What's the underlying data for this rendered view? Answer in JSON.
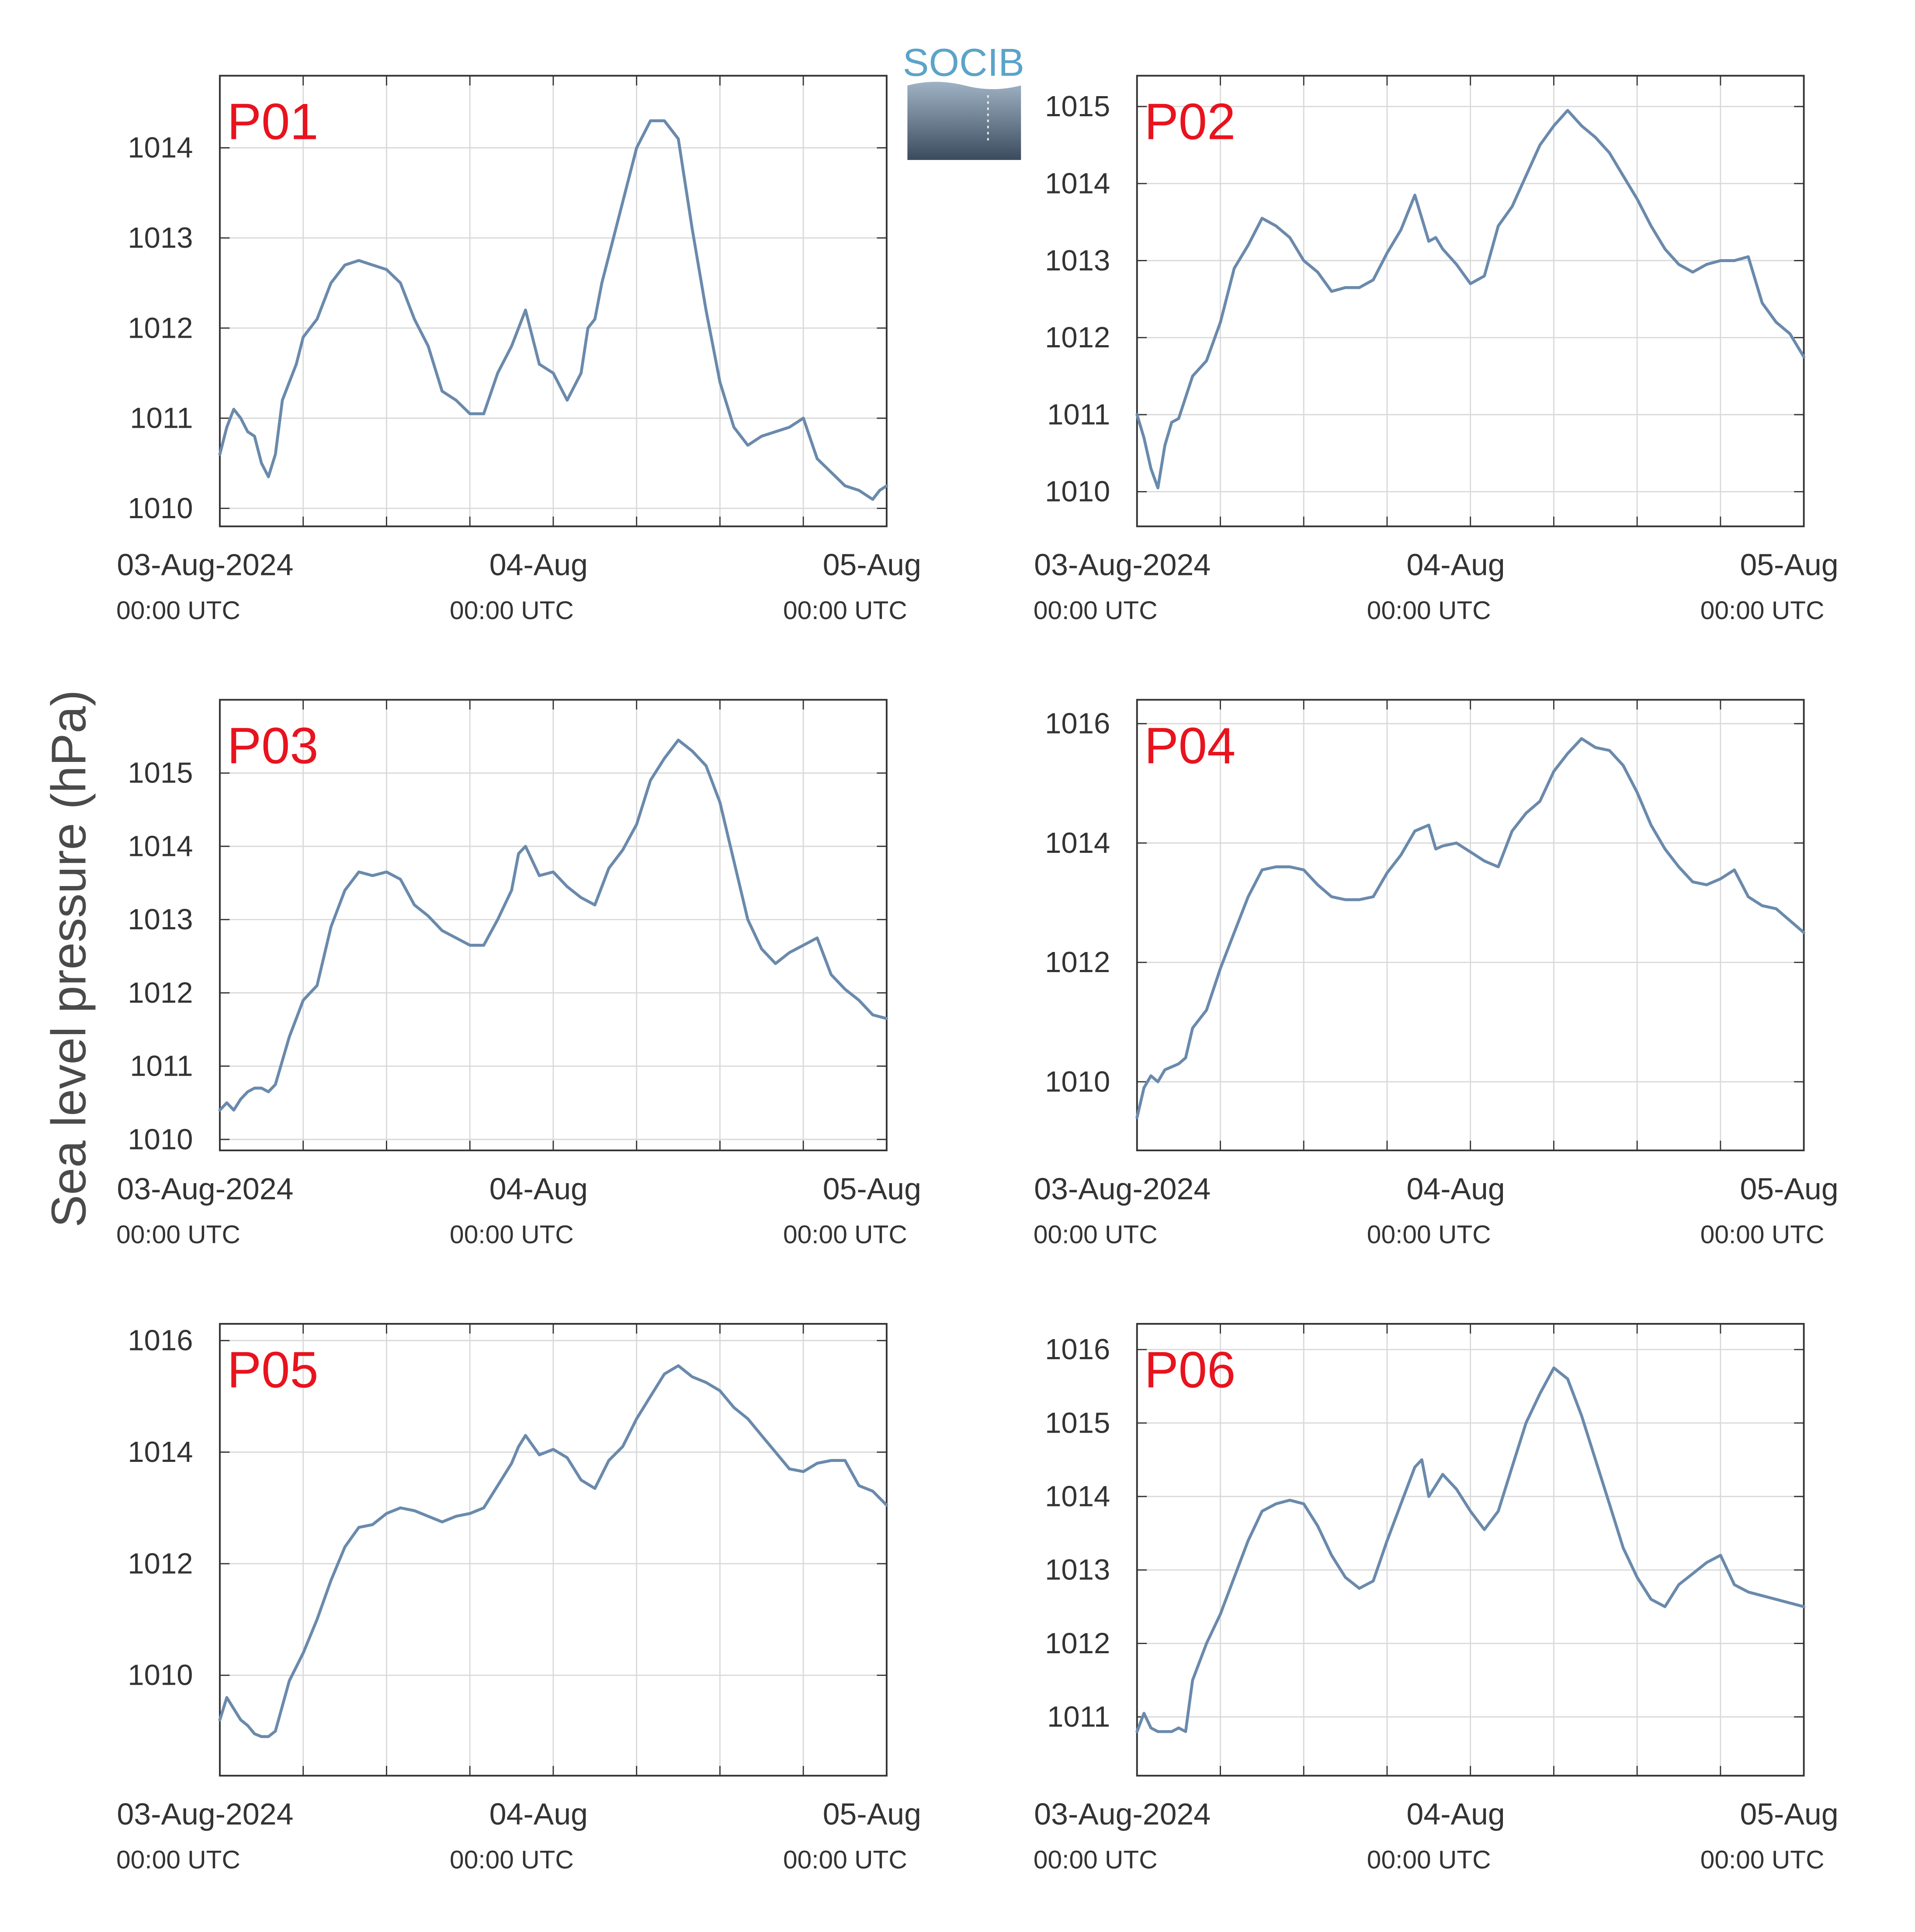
{
  "figure": {
    "ylabel": "Sea level pressure (hPa)",
    "logo": {
      "text": "SOCIB",
      "text_color": "#5ba3c9",
      "top_color": "#9fb3c4",
      "bottom_color": "#3b4b5e"
    },
    "colors": {
      "line": "#6a8aac",
      "title": "#e8131e",
      "grid": "#d9d9d9",
      "axis": "#333333"
    },
    "x_ticks": [
      {
        "date": "03-Aug-2024",
        "time": "00:00 UTC"
      },
      {
        "date": "04-Aug",
        "time": "00:00 UTC"
      },
      {
        "date": "05-Aug",
        "time": "00:00 UTC"
      }
    ]
  },
  "chart_data": [
    {
      "type": "line",
      "title": "P01",
      "xlim": [
        "2024-08-03 00:00",
        "2024-08-05 00:00"
      ],
      "ylim": [
        1009.8,
        1014.8
      ],
      "yticks": [
        1010,
        1011,
        1012,
        1013,
        1014
      ],
      "x_hours": [
        0,
        0.5,
        1,
        1.5,
        2,
        2.5,
        3,
        3.5,
        4,
        4.5,
        5,
        5.5,
        6,
        7,
        8,
        9,
        10,
        11,
        12,
        13,
        14,
        15,
        16,
        17,
        18,
        19,
        20,
        21,
        22,
        23,
        24,
        25,
        26,
        26.5,
        27,
        27.5,
        28,
        29,
        30,
        31,
        32,
        33,
        34,
        35,
        36,
        37,
        38,
        39,
        40,
        41,
        42,
        43,
        44,
        45,
        46,
        46.5,
        47,
        47.5,
        48
      ],
      "values": [
        1010.6,
        1010.9,
        1011.1,
        1011.0,
        1010.85,
        1010.8,
        1010.5,
        1010.35,
        1010.6,
        1011.2,
        1011.4,
        1011.6,
        1011.9,
        1012.1,
        1012.5,
        1012.7,
        1012.75,
        1012.7,
        1012.65,
        1012.5,
        1012.1,
        1011.8,
        1011.3,
        1011.2,
        1011.05,
        1011.05,
        1011.5,
        1011.8,
        1012.2,
        1011.6,
        1011.5,
        1011.2,
        1011.5,
        1012.0,
        1012.1,
        1012.5,
        1012.8,
        1013.4,
        1014.0,
        1014.3,
        1014.3,
        1014.1,
        1013.1,
        1012.2,
        1011.4,
        1010.9,
        1010.7,
        1010.8,
        1010.85,
        1010.9,
        1011.0,
        1010.55,
        1010.4,
        1010.25,
        1010.2,
        1010.15,
        1010.1,
        1010.2,
        1010.25
      ],
      "series": [
        {
          "name": ""
        }
      ]
    },
    {
      "type": "line",
      "title": "P02",
      "xlim": [
        "2024-08-03 00:00",
        "2024-08-05 00:00"
      ],
      "ylim": [
        1009.55,
        1015.4
      ],
      "yticks": [
        1010,
        1011,
        1012,
        1013,
        1014,
        1015
      ],
      "x_hours": [
        0,
        0.5,
        1,
        1.5,
        2,
        2.5,
        3,
        4,
        5,
        6,
        7,
        8,
        9,
        10,
        11,
        12,
        13,
        14,
        15,
        16,
        17,
        18,
        19,
        20,
        21,
        21.5,
        22,
        23,
        24,
        25,
        26,
        27,
        28,
        29,
        30,
        31,
        32,
        33,
        34,
        35,
        36,
        37,
        38,
        39,
        40,
        41,
        42,
        43,
        44,
        45,
        46,
        47,
        48
      ],
      "values": [
        1011.0,
        1010.7,
        1010.3,
        1010.05,
        1010.6,
        1010.9,
        1010.95,
        1011.5,
        1011.7,
        1012.2,
        1012.9,
        1013.2,
        1013.55,
        1013.45,
        1013.3,
        1013.0,
        1012.85,
        1012.6,
        1012.65,
        1012.65,
        1012.75,
        1013.1,
        1013.4,
        1013.85,
        1013.25,
        1013.3,
        1013.15,
        1012.95,
        1012.7,
        1012.8,
        1013.45,
        1013.7,
        1014.1,
        1014.5,
        1014.75,
        1014.95,
        1014.75,
        1014.6,
        1014.4,
        1014.1,
        1013.8,
        1013.45,
        1013.15,
        1012.95,
        1012.85,
        1012.95,
        1013.0,
        1013.0,
        1013.05,
        1012.45,
        1012.2,
        1012.05,
        1011.75
      ],
      "series": [
        {
          "name": ""
        }
      ]
    },
    {
      "type": "line",
      "title": "P03",
      "xlim": [
        "2024-08-03 00:00",
        "2024-08-05 00:00"
      ],
      "ylim": [
        1009.85,
        1016.0
      ],
      "yticks": [
        1010,
        1011,
        1012,
        1013,
        1014,
        1015
      ],
      "x_hours": [
        0,
        0.5,
        1,
        1.5,
        2,
        2.5,
        3,
        3.5,
        4,
        5,
        6,
        7,
        8,
        9,
        10,
        11,
        12,
        13,
        14,
        15,
        16,
        17,
        18,
        19,
        20,
        21,
        21.5,
        22,
        23,
        24,
        25,
        26,
        27,
        28,
        29,
        30,
        31,
        32,
        33,
        34,
        35,
        36,
        37,
        38,
        39,
        40,
        41,
        42,
        43,
        44,
        45,
        46,
        47,
        48
      ],
      "values": [
        1010.4,
        1010.5,
        1010.4,
        1010.55,
        1010.65,
        1010.7,
        1010.7,
        1010.65,
        1010.75,
        1011.4,
        1011.9,
        1012.1,
        1012.9,
        1013.4,
        1013.65,
        1013.6,
        1013.65,
        1013.55,
        1013.2,
        1013.05,
        1012.85,
        1012.75,
        1012.65,
        1012.65,
        1013.0,
        1013.4,
        1013.9,
        1014.0,
        1013.6,
        1013.65,
        1013.45,
        1013.3,
        1013.2,
        1013.7,
        1013.95,
        1014.3,
        1014.9,
        1015.2,
        1015.45,
        1015.3,
        1015.1,
        1014.6,
        1013.8,
        1013.0,
        1012.6,
        1012.4,
        1012.55,
        1012.65,
        1012.75,
        1012.25,
        1012.05,
        1011.9,
        1011.7,
        1011.65
      ],
      "series": [
        {
          "name": ""
        }
      ]
    },
    {
      "type": "line",
      "title": "P04",
      "xlim": [
        "2024-08-03 00:00",
        "2024-08-05 00:00"
      ],
      "ylim": [
        1008.85,
        1016.4
      ],
      "yticks": [
        1010,
        1012,
        1014,
        1016
      ],
      "x_hours": [
        0,
        0.5,
        1,
        1.5,
        2,
        2.5,
        3,
        3.5,
        4,
        5,
        6,
        7,
        8,
        9,
        10,
        11,
        12,
        13,
        14,
        15,
        16,
        17,
        18,
        19,
        20,
        21,
        21.5,
        22,
        23,
        24,
        25,
        26,
        27,
        28,
        29,
        30,
        31,
        32,
        33,
        34,
        35,
        36,
        37,
        38,
        39,
        40,
        41,
        42,
        43,
        44,
        45,
        46,
        47,
        48
      ],
      "values": [
        1009.4,
        1009.9,
        1010.1,
        1010.0,
        1010.2,
        1010.25,
        1010.3,
        1010.4,
        1010.9,
        1011.2,
        1011.9,
        1012.5,
        1013.1,
        1013.55,
        1013.6,
        1013.6,
        1013.55,
        1013.3,
        1013.1,
        1013.05,
        1013.05,
        1013.1,
        1013.5,
        1013.8,
        1014.2,
        1014.3,
        1013.9,
        1013.95,
        1014.0,
        1013.85,
        1013.7,
        1013.6,
        1014.2,
        1014.5,
        1014.7,
        1015.2,
        1015.5,
        1015.75,
        1015.6,
        1015.55,
        1015.3,
        1014.85,
        1014.3,
        1013.9,
        1013.6,
        1013.35,
        1013.3,
        1013.4,
        1013.55,
        1013.1,
        1012.95,
        1012.9,
        1012.7,
        1012.5
      ],
      "series": [
        {
          "name": ""
        }
      ]
    },
    {
      "type": "line",
      "title": "P05",
      "xlim": [
        "2024-08-03 00:00",
        "2024-08-05 00:00"
      ],
      "ylim": [
        1008.2,
        1016.3
      ],
      "yticks": [
        1010,
        1012,
        1014,
        1016
      ],
      "x_hours": [
        0,
        0.5,
        1,
        1.5,
        2,
        2.5,
        3,
        3.5,
        4,
        5,
        6,
        7,
        8,
        9,
        10,
        11,
        12,
        13,
        14,
        15,
        16,
        17,
        18,
        19,
        20,
        21,
        21.5,
        22,
        23,
        24,
        25,
        26,
        27,
        28,
        29,
        30,
        31,
        32,
        33,
        34,
        35,
        36,
        37,
        38,
        39,
        40,
        41,
        42,
        43,
        44,
        45,
        46,
        47,
        48
      ],
      "values": [
        1009.2,
        1009.6,
        1009.4,
        1009.2,
        1009.1,
        1008.95,
        1008.9,
        1008.9,
        1009.0,
        1009.9,
        1010.4,
        1011.0,
        1011.7,
        1012.3,
        1012.65,
        1012.7,
        1012.9,
        1013.0,
        1012.95,
        1012.85,
        1012.75,
        1012.85,
        1012.9,
        1013.0,
        1013.4,
        1013.8,
        1014.1,
        1014.3,
        1013.95,
        1014.05,
        1013.9,
        1013.5,
        1013.35,
        1013.85,
        1014.1,
        1014.6,
        1015.0,
        1015.4,
        1015.55,
        1015.35,
        1015.25,
        1015.1,
        1014.8,
        1014.6,
        1014.3,
        1014.0,
        1013.7,
        1013.65,
        1013.8,
        1013.85,
        1013.85,
        1013.4,
        1013.3,
        1013.05
      ],
      "series": [
        {
          "name": ""
        }
      ]
    },
    {
      "type": "line",
      "title": "P06",
      "xlim": [
        "2024-08-03 00:00",
        "2024-08-05 00:00"
      ],
      "ylim": [
        1010.2,
        1016.35
      ],
      "yticks": [
        1011,
        1012,
        1013,
        1014,
        1015,
        1016
      ],
      "x_hours": [
        0,
        0.5,
        1,
        1.5,
        2,
        2.5,
        3,
        3.5,
        4,
        5,
        6,
        7,
        8,
        9,
        10,
        11,
        12,
        13,
        14,
        15,
        16,
        17,
        18,
        19,
        20,
        20.5,
        21,
        21.5,
        22,
        23,
        24,
        25,
        26,
        27,
        28,
        29,
        30,
        31,
        32,
        33,
        34,
        35,
        36,
        37,
        38,
        39,
        40,
        41,
        42,
        43,
        44,
        45,
        46,
        47,
        48
      ],
      "values": [
        1010.8,
        1011.05,
        1010.85,
        1010.8,
        1010.8,
        1010.8,
        1010.85,
        1010.8,
        1011.5,
        1012.0,
        1012.4,
        1012.9,
        1013.4,
        1013.8,
        1013.9,
        1013.95,
        1013.9,
        1013.6,
        1013.2,
        1012.9,
        1012.75,
        1012.85,
        1013.4,
        1013.9,
        1014.4,
        1014.5,
        1014.0,
        1014.15,
        1014.3,
        1014.1,
        1013.8,
        1013.55,
        1013.8,
        1014.4,
        1015.0,
        1015.4,
        1015.75,
        1015.6,
        1015.1,
        1014.5,
        1013.9,
        1013.3,
        1012.9,
        1012.6,
        1012.5,
        1012.8,
        1012.95,
        1013.1,
        1013.2,
        1012.8,
        1012.7,
        1012.65,
        1012.6,
        1012.55,
        1012.5
      ],
      "series": [
        {
          "name": ""
        }
      ]
    }
  ]
}
